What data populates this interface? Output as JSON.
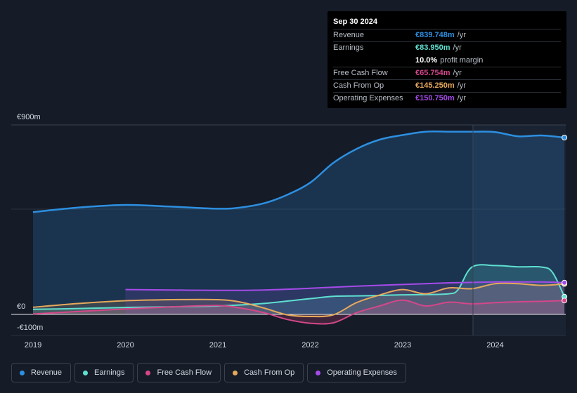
{
  "chart_data": {
    "type": "area",
    "title": "",
    "xlabel": "",
    "ylabel": "",
    "ylim": [
      -100,
      900
    ],
    "y_ticks": [
      "€900m",
      "€0",
      "-€100m"
    ],
    "x_ticks": [
      "2019",
      "2020",
      "2021",
      "2022",
      "2023",
      "2024"
    ],
    "x_range": [
      2018.75,
      2024.75
    ],
    "highlight_start": 2023.75,
    "series": [
      {
        "name": "Revenue",
        "color": "#2d8fe0",
        "fill": true,
        "points": [
          [
            2019.0,
            486
          ],
          [
            2019.5,
            508
          ],
          [
            2020.0,
            520
          ],
          [
            2020.5,
            512
          ],
          [
            2021.0,
            502
          ],
          [
            2021.25,
            508
          ],
          [
            2021.5,
            528
          ],
          [
            2021.75,
            568
          ],
          [
            2022.0,
            626
          ],
          [
            2022.25,
            720
          ],
          [
            2022.5,
            786
          ],
          [
            2022.75,
            830
          ],
          [
            2023.0,
            852
          ],
          [
            2023.25,
            868
          ],
          [
            2023.5,
            868
          ],
          [
            2023.75,
            868
          ],
          [
            2024.0,
            866
          ],
          [
            2024.25,
            846
          ],
          [
            2024.5,
            850
          ],
          [
            2024.75,
            840
          ]
        ]
      },
      {
        "name": "Earnings",
        "color": "#5fe0d0",
        "fill": true,
        "points": [
          [
            2019.0,
            24
          ],
          [
            2019.5,
            28
          ],
          [
            2020.0,
            33
          ],
          [
            2020.5,
            36
          ],
          [
            2021.0,
            40
          ],
          [
            2021.5,
            52
          ],
          [
            2022.0,
            75
          ],
          [
            2022.25,
            86
          ],
          [
            2022.5,
            88
          ],
          [
            2022.75,
            90
          ],
          [
            2023.0,
            93
          ],
          [
            2023.25,
            94
          ],
          [
            2023.5,
            98
          ],
          [
            2023.6,
            118
          ],
          [
            2023.75,
            225
          ],
          [
            2024.0,
            232
          ],
          [
            2024.25,
            226
          ],
          [
            2024.5,
            225
          ],
          [
            2024.62,
            200
          ],
          [
            2024.75,
            84
          ]
        ]
      },
      {
        "name": "Free Cash Flow",
        "color": "#d4478a",
        "fill": true,
        "points": [
          [
            2019.0,
            2
          ],
          [
            2019.5,
            14
          ],
          [
            2020.0,
            26
          ],
          [
            2020.5,
            36
          ],
          [
            2021.0,
            42
          ],
          [
            2021.25,
            30
          ],
          [
            2021.5,
            8
          ],
          [
            2021.75,
            -24
          ],
          [
            2022.0,
            -42
          ],
          [
            2022.25,
            -40
          ],
          [
            2022.5,
            8
          ],
          [
            2022.75,
            40
          ],
          [
            2023.0,
            68
          ],
          [
            2023.25,
            40
          ],
          [
            2023.5,
            58
          ],
          [
            2023.75,
            50
          ],
          [
            2024.0,
            56
          ],
          [
            2024.25,
            60
          ],
          [
            2024.5,
            62
          ],
          [
            2024.75,
            66
          ]
        ]
      },
      {
        "name": "Cash From Op",
        "color": "#e6a95c",
        "fill": true,
        "points": [
          [
            2019.0,
            34
          ],
          [
            2019.5,
            52
          ],
          [
            2020.0,
            65
          ],
          [
            2020.5,
            70
          ],
          [
            2021.0,
            70
          ],
          [
            2021.25,
            58
          ],
          [
            2021.5,
            30
          ],
          [
            2021.75,
            -2
          ],
          [
            2022.0,
            -10
          ],
          [
            2022.25,
            -2
          ],
          [
            2022.5,
            56
          ],
          [
            2022.75,
            92
          ],
          [
            2023.0,
            118
          ],
          [
            2023.25,
            98
          ],
          [
            2023.5,
            126
          ],
          [
            2023.75,
            122
          ],
          [
            2024.0,
            146
          ],
          [
            2024.25,
            146
          ],
          [
            2024.5,
            138
          ],
          [
            2024.75,
            145
          ]
        ]
      },
      {
        "name": "Operating Expenses",
        "color": "#a54be8",
        "fill": true,
        "points": [
          [
            2020.0,
            118
          ],
          [
            2020.5,
            116
          ],
          [
            2021.0,
            114
          ],
          [
            2021.5,
            116
          ],
          [
            2022.0,
            124
          ],
          [
            2022.5,
            134
          ],
          [
            2023.0,
            142
          ],
          [
            2023.5,
            150
          ],
          [
            2024.0,
            154
          ],
          [
            2024.5,
            154
          ],
          [
            2024.75,
            151
          ]
        ]
      }
    ]
  },
  "tooltip": {
    "date": "Sep 30 2024",
    "rows": [
      {
        "label": "Revenue",
        "value": "€839.748m",
        "unit": "/yr",
        "color": "#2d8fe0"
      },
      {
        "label": "Earnings",
        "value": "€83.950m",
        "unit": "/yr",
        "color": "#5fe0d0"
      },
      {
        "label": "",
        "value": "10.0%",
        "unit": "profit margin",
        "color": "#ffffff"
      },
      {
        "label": "Free Cash Flow",
        "value": "€65.754m",
        "unit": "/yr",
        "color": "#d4478a"
      },
      {
        "label": "Cash From Op",
        "value": "€145.250m",
        "unit": "/yr",
        "color": "#e6a95c"
      },
      {
        "label": "Operating Expenses",
        "value": "€150.750m",
        "unit": "/yr",
        "color": "#a54be8"
      }
    ]
  },
  "legend": [
    {
      "label": "Revenue",
      "color": "#2d8fe0"
    },
    {
      "label": "Earnings",
      "color": "#5fe0d0"
    },
    {
      "label": "Free Cash Flow",
      "color": "#d4478a"
    },
    {
      "label": "Cash From Op",
      "color": "#e6a95c"
    },
    {
      "label": "Operating Expenses",
      "color": "#a54be8"
    }
  ]
}
